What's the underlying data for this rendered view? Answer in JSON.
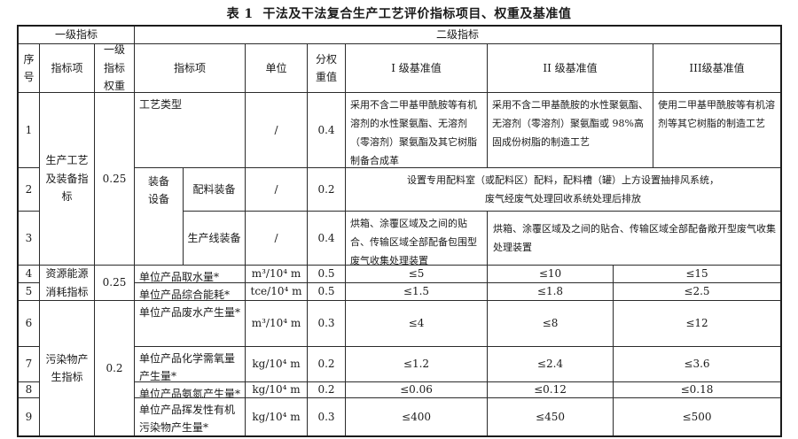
{
  "title": "表 1  干法及干法复合生产工艺评价指标项目、权重及基准值",
  "header": {
    "level1": "一级指标",
    "level2": "二级指标",
    "seq": "序\n号",
    "l1_item": "指标项",
    "l1_weight": "一级\n指标\n权重",
    "l2_item": "指标项",
    "unit": "单位",
    "sub_weight": "分权\n重值",
    "grade1": "I 级基准值",
    "grade2": "II 级基准值",
    "grade3": "III级基准值"
  },
  "groups": [
    {
      "name": "生产工艺及装备指标",
      "weight": "0.25"
    },
    {
      "name": "资源能源消耗指标",
      "weight": "0.25"
    },
    {
      "name": "污染物产生指标",
      "weight": "0.2"
    }
  ],
  "rows": [
    {
      "seq": "1",
      "item": "工艺类型",
      "unit": "/",
      "weight": "0.4",
      "g1": "采用不含二甲基甲酰胺等有机溶剂的水性聚氨酯、无溶剂（零溶剂）聚氨酯及其它树脂制备合成革",
      "g2": "采用不含二甲基酰胺的水性聚氨酯、无溶剂（零溶剂）聚氨酯或 98%高固成份树脂的制造工艺",
      "g3": "使用二甲基甲酰胺等有机溶剂等其它树脂的制造工艺"
    },
    {
      "seq": "2",
      "item_group": "装备\n设备",
      "item": "配料装备",
      "unit": "/",
      "weight": "0.2",
      "g_all": "设置专用配料室（或配料区）配料，配料槽（罐）上方设置抽排风系统，\n废气经废气处理回收系统处理后排放"
    },
    {
      "seq": "3",
      "item": "生产线装备",
      "unit": "/",
      "weight": "0.4",
      "g1": "烘箱、涂覆区域及之间的贴合、传输区域全部配备包围型废气收集处理装置",
      "g23": "烘箱、涂覆区域及之间的贴合、传输区域全部配备敞开型废气收集处理装置"
    },
    {
      "seq": "4",
      "item": "单位产品取水量*",
      "unit": "m³/10⁴ m",
      "weight": "0.5",
      "g1": "≤5",
      "g2": "≤10",
      "g3": "≤15"
    },
    {
      "seq": "5",
      "item": "单位产品综合能耗*",
      "unit": "tce/10⁴ m",
      "weight": "0.5",
      "g1": "≤1.5",
      "g2": "≤1.8",
      "g3": "≤2.5"
    },
    {
      "seq": "6",
      "item": "单位产品废水产生量*",
      "unit": "m³/10⁴ m",
      "weight": "0.3",
      "g1": "≤4",
      "g2": "≤8",
      "g3": "≤12"
    },
    {
      "seq": "7",
      "item": "单位产品化学需氧量产生量*",
      "unit": "kg/10⁴ m",
      "weight": "0.2",
      "g1": "≤1.2",
      "g2": "≤2.4",
      "g3": "≤3.6"
    },
    {
      "seq": "8",
      "item": "单位产品氨氮产生量*",
      "unit": "kg/10⁴ m",
      "weight": "0.2",
      "g1": "≤0.06",
      "g2": "≤0.12",
      "g3": "≤0.18"
    },
    {
      "seq": "9",
      "item": "单位产品挥发性有机污染物产生量*",
      "unit": "kg/10⁴ m",
      "weight": "0.3",
      "g1": "≤400",
      "g2": "≤450",
      "g3": "≤500"
    }
  ]
}
